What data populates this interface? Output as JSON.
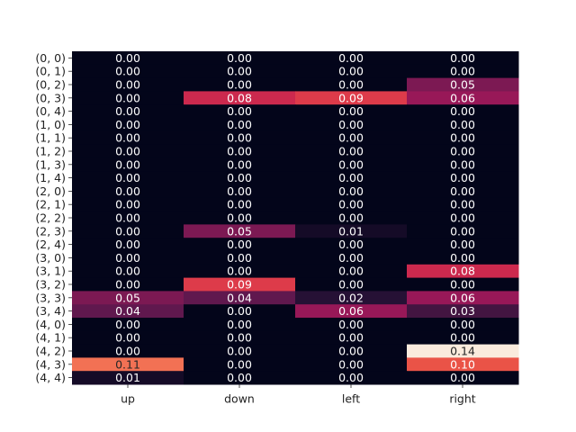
{
  "chart_data": {
    "type": "heatmap",
    "title": "",
    "xlabel": "",
    "ylabel": "",
    "x_categories": [
      "up",
      "down",
      "left",
      "right"
    ],
    "y_categories": [
      "(0, 0)",
      "(0, 1)",
      "(0, 2)",
      "(0, 3)",
      "(0, 4)",
      "(1, 0)",
      "(1, 1)",
      "(1, 2)",
      "(1, 3)",
      "(1, 4)",
      "(2, 0)",
      "(2, 1)",
      "(2, 2)",
      "(2, 3)",
      "(2, 4)",
      "(3, 0)",
      "(3, 1)",
      "(3, 2)",
      "(3, 3)",
      "(3, 4)",
      "(4, 0)",
      "(4, 1)",
      "(4, 2)",
      "(4, 3)",
      "(4, 4)"
    ],
    "values": [
      [
        0.0,
        0.0,
        0.0,
        0.0
      ],
      [
        0.0,
        0.0,
        0.0,
        0.0
      ],
      [
        0.0,
        0.0,
        0.0,
        0.05
      ],
      [
        0.0,
        0.08,
        0.09,
        0.06
      ],
      [
        0.0,
        0.0,
        0.0,
        0.0
      ],
      [
        0.0,
        0.0,
        0.0,
        0.0
      ],
      [
        0.0,
        0.0,
        0.0,
        0.0
      ],
      [
        0.0,
        0.0,
        0.0,
        0.0
      ],
      [
        0.0,
        0.0,
        0.0,
        0.0
      ],
      [
        0.0,
        0.0,
        0.0,
        0.0
      ],
      [
        0.0,
        0.0,
        0.0,
        0.0
      ],
      [
        0.0,
        0.0,
        0.0,
        0.0
      ],
      [
        0.0,
        0.0,
        0.0,
        0.0
      ],
      [
        0.0,
        0.05,
        0.01,
        0.0
      ],
      [
        0.0,
        0.0,
        0.0,
        0.0
      ],
      [
        0.0,
        0.0,
        0.0,
        0.0
      ],
      [
        0.0,
        0.0,
        0.0,
        0.08
      ],
      [
        0.0,
        0.09,
        0.0,
        0.0
      ],
      [
        0.05,
        0.04,
        0.02,
        0.06
      ],
      [
        0.04,
        0.0,
        0.06,
        0.03
      ],
      [
        0.0,
        0.0,
        0.0,
        0.0
      ],
      [
        0.0,
        0.0,
        0.0,
        0.0
      ],
      [
        0.0,
        0.0,
        0.0,
        0.14
      ],
      [
        0.11,
        0.0,
        0.0,
        0.1
      ],
      [
        0.01,
        0.0,
        0.0,
        0.0
      ]
    ],
    "color_scale": "rocket",
    "vmin": 0.0,
    "vmax": 0.14,
    "annotation_format": "0.00",
    "grid": false,
    "colorbar": false
  }
}
